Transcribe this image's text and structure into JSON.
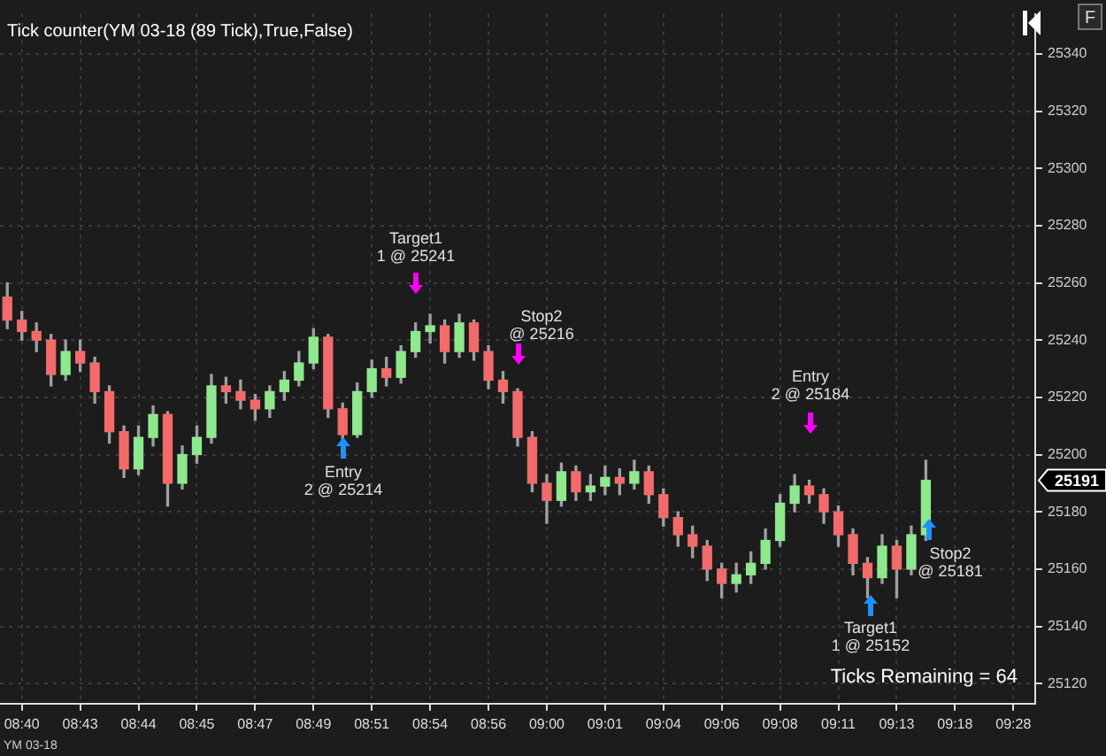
{
  "chart_data": {
    "type": "candlestick",
    "title": "Tick counter(YM 03-18 (89 Tick),True,False)",
    "categories": [
      null,
      "08:40",
      null,
      null,
      null,
      "08:43",
      null,
      null,
      null,
      "08:44",
      null,
      null,
      null,
      "08:45",
      null,
      null,
      null,
      "08:47",
      null,
      null,
      null,
      "08:49",
      null,
      null,
      null,
      "08:51",
      null,
      null,
      null,
      "08:54",
      null,
      null,
      null,
      "08:56",
      null,
      null,
      null,
      "09:00",
      null,
      null,
      null,
      "09:01",
      null,
      null,
      null,
      "09:04",
      null,
      null,
      null,
      "09:06",
      null,
      null,
      null,
      "09:08",
      null,
      null,
      null,
      "09:11",
      null,
      null,
      null,
      "09:13",
      null,
      null,
      null,
      "09:18",
      null,
      null,
      null,
      "09:28",
      null
    ],
    "ohlc": [
      [
        25255,
        25260,
        25244,
        25247
      ],
      [
        25247,
        25250,
        25240,
        25243
      ],
      [
        25243,
        25246,
        25236,
        25240
      ],
      [
        25240,
        25242,
        25224,
        25228
      ],
      [
        25228,
        25240,
        25226,
        25236
      ],
      [
        25236,
        25240,
        25229,
        25232
      ],
      [
        25232,
        25234,
        25218,
        25222
      ],
      [
        25222,
        25224,
        25204,
        25208
      ],
      [
        25208,
        25210,
        25192,
        25195
      ],
      [
        25195,
        25210,
        25193,
        25206
      ],
      [
        25206,
        25217,
        25203,
        25214
      ],
      [
        25214,
        25215,
        25182,
        25190
      ],
      [
        25190,
        25203,
        25188,
        25200
      ],
      [
        25200,
        25210,
        25197,
        25206
      ],
      [
        25206,
        25228,
        25204,
        25224
      ],
      [
        25224,
        25227,
        25218,
        25222
      ],
      [
        25222,
        25226,
        25216,
        25219
      ],
      [
        25219,
        25221,
        25212,
        25216
      ],
      [
        25216,
        25224,
        25213,
        25222
      ],
      [
        25222,
        25229,
        25219,
        25226
      ],
      [
        25226,
        25236,
        25224,
        25232
      ],
      [
        25232,
        25244,
        25230,
        25241
      ],
      [
        25241,
        25242,
        25213,
        25216
      ],
      [
        25216,
        25218,
        25205,
        25207
      ],
      [
        25207,
        25225,
        25206,
        25222
      ],
      [
        25222,
        25233,
        25220,
        25230
      ],
      [
        25230,
        25234,
        25224,
        25227
      ],
      [
        25227,
        25238,
        25225,
        25236
      ],
      [
        25236,
        25246,
        25234,
        25243
      ],
      [
        25243,
        25249,
        25239,
        25245
      ],
      [
        25245,
        25247,
        25232,
        25236
      ],
      [
        25236,
        25249,
        25234,
        25246
      ],
      [
        25246,
        25247,
        25233,
        25236
      ],
      [
        25236,
        25238,
        25223,
        25226
      ],
      [
        25226,
        25229,
        25218,
        25222
      ],
      [
        25222,
        25223,
        25203,
        25206
      ],
      [
        25206,
        25208,
        25187,
        25190
      ],
      [
        25190,
        25193,
        25176,
        25184
      ],
      [
        25184,
        25197,
        25182,
        25194
      ],
      [
        25194,
        25196,
        25184,
        25187
      ],
      [
        25187,
        25193,
        25184,
        25189
      ],
      [
        25189,
        25196,
        25186,
        25192
      ],
      [
        25192,
        25195,
        25186,
        25190
      ],
      [
        25190,
        25198,
        25188,
        25194
      ],
      [
        25194,
        25196,
        25183,
        25186
      ],
      [
        25186,
        25188,
        25175,
        25178
      ],
      [
        25178,
        25180,
        25168,
        25172
      ],
      [
        25172,
        25175,
        25164,
        25168
      ],
      [
        25168,
        25170,
        25156,
        25160
      ],
      [
        25160,
        25162,
        25150,
        25155
      ],
      [
        25155,
        25162,
        25152,
        25158
      ],
      [
        25158,
        25166,
        25155,
        25162
      ],
      [
        25162,
        25174,
        25160,
        25170
      ],
      [
        25170,
        25186,
        25168,
        25183
      ],
      [
        25183,
        25193,
        25180,
        25189
      ],
      [
        25189,
        25191,
        25183,
        25186
      ],
      [
        25186,
        25188,
        25176,
        25180
      ],
      [
        25180,
        25182,
        25168,
        25172
      ],
      [
        25172,
        25174,
        25158,
        25162
      ],
      [
        25162,
        25164,
        25150,
        25157
      ],
      [
        25157,
        25172,
        25155,
        25168
      ],
      [
        25168,
        25170,
        25150,
        25160
      ],
      [
        25160,
        25175,
        25158,
        25172
      ],
      [
        25172,
        25198,
        25170,
        25191
      ],
      null,
      null,
      null,
      null,
      null,
      null,
      null
    ],
    "ylim": [
      25113,
      25354
    ],
    "yticks": [
      25120,
      25140,
      25160,
      25180,
      25200,
      25220,
      25240,
      25260,
      25280,
      25300,
      25320,
      25340
    ],
    "grid": true,
    "annotations": [
      "Target1\n1 @ 25241",
      "Entry\n2 @ 25214",
      "Stop2\n@ 25216",
      "Entry\n2 @ 25184",
      "Target1\n1 @ 25152",
      "Stop2\n@ 25181",
      "25191",
      "Ticks Remaining = 64",
      "YM 03-18",
      "F"
    ]
  }
}
